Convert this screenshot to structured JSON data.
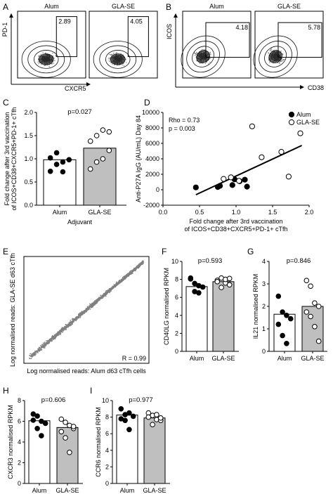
{
  "chart_data": [
    {
      "panel": "A",
      "type": "scatter",
      "gates": [
        {
          "title": "Alum",
          "gate_value": "2.89"
        },
        {
          "title": "GLA-SE",
          "gate_value": "4.05"
        }
      ],
      "xlabel": "CXCR5",
      "ylabel": "PD-1"
    },
    {
      "panel": "B",
      "type": "scatter",
      "gates": [
        {
          "title": "Alum",
          "gate_value": "4.18"
        },
        {
          "title": "GLA-SE",
          "gate_value": "5.78"
        }
      ],
      "xlabel": "CD38",
      "ylabel": "ICOS"
    },
    {
      "panel": "C",
      "type": "bar",
      "categories": [
        "Alum",
        "GLA-SE"
      ],
      "values": [
        0.98,
        1.23
      ],
      "points": [
        [
          0.73,
          0.88,
          0.93,
          0.98,
          1.02,
          1.13,
          0.72
        ],
        [
          0.78,
          0.93,
          1.0,
          1.18,
          1.38,
          1.5,
          1.62,
          1.58
        ]
      ],
      "pvalue": "p=0.027",
      "xlabel": "Adjuvant",
      "ylabel": "Fold change after 3rd vaccination of ICOS+CD38+CXCR5+PD-1+ cTfh",
      "ylim": [
        0,
        2.0
      ],
      "yticks": [
        "0.0",
        "0.5",
        "1.0",
        "1.5",
        "2.0"
      ]
    },
    {
      "panel": "D",
      "type": "scatter",
      "series": [
        {
          "name": "Alum",
          "points": [
            [
              0.45,
              300
            ],
            [
              0.75,
              350
            ],
            [
              0.78,
              500
            ],
            [
              0.95,
              600
            ],
            [
              1.05,
              1100
            ],
            [
              1.12,
              1300
            ],
            [
              1.15,
              400
            ],
            [
              0.98,
              1350
            ]
          ]
        },
        {
          "name": "GLA-SE",
          "points": [
            [
              0.83,
              1400
            ],
            [
              0.93,
              1600
            ],
            [
              1.04,
              1150
            ],
            [
              1.22,
              8200
            ],
            [
              1.35,
              4200
            ],
            [
              1.62,
              4900
            ],
            [
              1.72,
              1700
            ],
            [
              1.88,
              7300
            ]
          ]
        }
      ],
      "stats": [
        "Rho = 0.73",
        "p = 0.003"
      ],
      "xlabel": "Fold change after 3rd vaccination of ICOS+CD38+CXCR5+PD-1+ cTfh",
      "ylabel": "Anti-P27A IgG (AU/mL) Day 84",
      "xlim": [
        0.0,
        2.0
      ],
      "ylim": [
        -2000,
        10000
      ],
      "xticks": [
        "0.0",
        "0.5",
        "1.0",
        "1.5",
        "2.0"
      ],
      "yticks": [
        "-2000",
        "0",
        "2000",
        "4000",
        "6000",
        "8000",
        "10000"
      ]
    },
    {
      "panel": "E",
      "type": "scatter",
      "xlabel": "Log normalised reads: Alum d63 cTfh cells",
      "ylabel": "Log normalised reads: GLA-SE d63 cTfh",
      "annotation": "R = 0.99"
    },
    {
      "panel": "F",
      "type": "bar",
      "categories": [
        "Alum",
        "GLA-SE"
      ],
      "values": [
        7.2,
        7.75
      ],
      "points": [
        [
          8.15,
          7.55,
          7.3,
          7.15,
          8.05,
          6.65,
          6.5
        ],
        [
          7.9,
          8.15,
          7.6,
          7.4,
          7.75,
          7.1,
          8.0,
          8.1
        ]
      ],
      "pvalue": "p=0.593",
      "ylabel": "CD40LG normalised RPKM",
      "ylim": [
        0,
        10
      ],
      "yticks": [
        "0",
        "2",
        "4",
        "6",
        "8",
        "10"
      ]
    },
    {
      "panel": "G",
      "type": "bar",
      "categories": [
        "Alum",
        "GLA-SE"
      ],
      "values": [
        1.65,
        2.0
      ],
      "points": [
        [
          2.45,
          1.75,
          1.6,
          1.45,
          1.2,
          0.7,
          0.35
        ],
        [
          3.15,
          2.9,
          2.15,
          2.0,
          1.75,
          1.55,
          1.1,
          0.45
        ]
      ],
      "pvalue": "p=0.846",
      "ylabel": "IL21 normalised RPKM",
      "ylim": [
        0,
        4
      ],
      "yticks": [
        "0",
        "1",
        "2",
        "3",
        "4"
      ]
    },
    {
      "panel": "H",
      "type": "bar",
      "categories": [
        "Alum",
        "GLA-SE"
      ],
      "values": [
        6.05,
        5.4
      ],
      "points": [
        [
          6.7,
          6.5,
          6.0,
          5.8,
          6.1,
          5.3,
          4.6
        ],
        [
          6.2,
          5.9,
          5.6,
          5.3,
          5.0,
          4.4,
          3.0,
          5.5
        ]
      ],
      "pvalue": "p=0.606",
      "ylabel": "CXCR3 normalised RPKM",
      "ylim": [
        0,
        8
      ],
      "yticks": [
        "0",
        "2",
        "4",
        "6",
        "8"
      ]
    },
    {
      "panel": "I",
      "type": "bar",
      "categories": [
        "Alum",
        "GLA-SE"
      ],
      "values": [
        8.25,
        7.9
      ],
      "points": [
        [
          9.0,
          8.3,
          8.5,
          8.1,
          7.8,
          7.6,
          6.5
        ],
        [
          8.5,
          8.2,
          7.7,
          7.6,
          8.0,
          7.1,
          8.3,
          7.9
        ]
      ],
      "pvalue": "p=0.977",
      "ylabel": "CCR6 normalised RPKM",
      "ylim": [
        0,
        10
      ],
      "yticks": [
        "0",
        "2",
        "4",
        "6",
        "8",
        "10"
      ]
    }
  ],
  "colors": {
    "alum_fill": "#ffffff",
    "glase_fill": "#bfbfbf",
    "alum_point": "#000000",
    "glase_point": "#ffffff",
    "scatter_cloud": "#808080",
    "regression_line": "#000000"
  }
}
